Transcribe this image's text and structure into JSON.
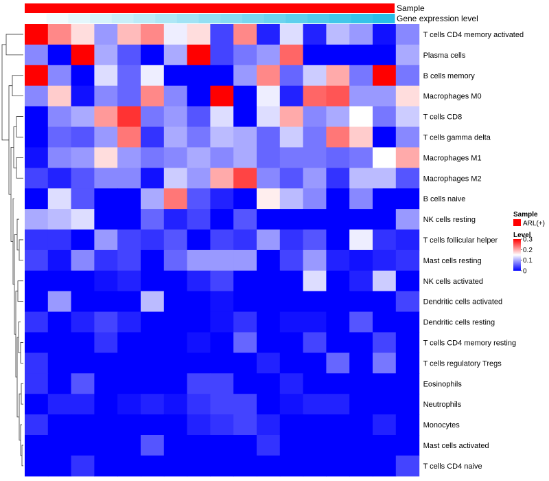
{
  "chart_data": {
    "type": "heatmap",
    "annotations": {
      "sample_label": "Sample",
      "gene_label": "Gene expression level",
      "sample_color": "#ff0000",
      "gene_colors": [
        "#ffffff",
        "#f2fbfe",
        "#e4f7fc",
        "#d7f3fb",
        "#c9eff9",
        "#bcebf8",
        "#aee7f6",
        "#a1e3f5",
        "#93dff3",
        "#86dbf2",
        "#78d7f0",
        "#6bd3ef",
        "#5dcfed",
        "#50cbec",
        "#42c7ea",
        "#35c3e9",
        "#27bfe7"
      ]
    },
    "rows": [
      "T cells CD4 memory activated",
      "Plasma cells",
      "B cells memory",
      "Macrophages M0",
      "T cells CD8",
      "T cells gamma delta",
      "Macrophages M1",
      "Macrophages M2",
      "B cells naive",
      "NK cells resting",
      "T cells follicular helper",
      "Mast cells resting",
      "NK cells activated",
      "Dendritic cells activated",
      "Dendritic cells resting",
      "T cells CD4 memory resting",
      "T cells regulatory  Tregs",
      "Eosinophils",
      "Neutrophils",
      "Monocytes",
      "Mast cells activated",
      "T cells CD4 naive"
    ],
    "values": [
      [
        0.3,
        0.22,
        0.17,
        0.09,
        0.19,
        0.22,
        0.14,
        0.17,
        0.04,
        0.22,
        0.02,
        0.13,
        0.02,
        0.11,
        0.09,
        0.01,
        0.08
      ],
      [
        0.08,
        0.0,
        0.3,
        0.1,
        0.05,
        0.0,
        0.1,
        0.3,
        0.04,
        0.07,
        0.09,
        0.24,
        0.0,
        0.0,
        0.0,
        0.0,
        0.1
      ],
      [
        0.3,
        0.08,
        0.0,
        0.13,
        0.06,
        0.14,
        0.0,
        0.0,
        0.0,
        0.09,
        0.22,
        0.06,
        0.12,
        0.2,
        0.07,
        0.3,
        0.07
      ],
      [
        0.08,
        0.18,
        0.01,
        0.08,
        0.06,
        0.22,
        0.08,
        0.0,
        0.3,
        0.0,
        0.14,
        0.02,
        0.24,
        0.25,
        0.09,
        0.09,
        0.17
      ],
      [
        0.0,
        0.08,
        0.1,
        0.21,
        0.27,
        0.07,
        0.09,
        0.05,
        0.13,
        0.0,
        0.13,
        0.2,
        0.08,
        0.1,
        0.15,
        0.07,
        0.12
      ],
      [
        0.0,
        0.06,
        0.05,
        0.09,
        0.23,
        0.03,
        0.1,
        0.07,
        0.11,
        0.1,
        0.06,
        0.12,
        0.07,
        0.23,
        0.18,
        0.0,
        0.08
      ],
      [
        0.01,
        0.08,
        0.09,
        0.17,
        0.09,
        0.07,
        0.08,
        0.1,
        0.08,
        0.1,
        0.06,
        0.07,
        0.07,
        0.06,
        0.07,
        0.15,
        0.2
      ],
      [
        0.04,
        0.02,
        0.05,
        0.08,
        0.08,
        0.01,
        0.12,
        0.09,
        0.2,
        0.26,
        0.08,
        0.05,
        0.09,
        0.03,
        0.11,
        0.11,
        0.05
      ],
      [
        0.0,
        0.13,
        0.05,
        0.0,
        0.0,
        0.1,
        0.23,
        0.05,
        0.02,
        0.0,
        0.16,
        0.11,
        0.08,
        0.0,
        0.08,
        0.0,
        0.0
      ],
      [
        0.1,
        0.11,
        0.13,
        0.0,
        0.0,
        0.06,
        0.02,
        0.04,
        0.0,
        0.05,
        0.0,
        0.0,
        0.0,
        0.0,
        0.0,
        0.0,
        0.09
      ],
      [
        0.03,
        0.03,
        0.0,
        0.09,
        0.04,
        0.03,
        0.05,
        0.0,
        0.04,
        0.03,
        0.09,
        0.03,
        0.05,
        0.0,
        0.14,
        0.03,
        0.02
      ],
      [
        0.04,
        0.01,
        0.08,
        0.03,
        0.04,
        0.0,
        0.06,
        0.09,
        0.09,
        0.09,
        0.0,
        0.04,
        0.09,
        0.02,
        0.01,
        0.02,
        0.03
      ],
      [
        0.0,
        0.0,
        0.0,
        0.01,
        0.02,
        0.0,
        0.0,
        0.02,
        0.04,
        0.0,
        0.0,
        0.0,
        0.13,
        0.0,
        0.02,
        0.12,
        0.0
      ],
      [
        0.0,
        0.09,
        0.0,
        0.0,
        0.0,
        0.11,
        0.0,
        0.0,
        0.01,
        0.0,
        0.0,
        0.0,
        0.0,
        0.0,
        0.0,
        0.0,
        0.04
      ],
      [
        0.03,
        0.0,
        0.02,
        0.04,
        0.02,
        0.0,
        0.0,
        0.0,
        0.01,
        0.03,
        0.0,
        0.01,
        0.01,
        0.0,
        0.05,
        0.0,
        0.0
      ],
      [
        0.0,
        0.0,
        0.0,
        0.03,
        0.0,
        0.0,
        0.0,
        0.01,
        0.0,
        0.06,
        0.0,
        0.0,
        0.04,
        0.0,
        0.0,
        0.04,
        0.0
      ],
      [
        0.03,
        0.0,
        0.0,
        0.0,
        0.0,
        0.0,
        0.0,
        0.0,
        0.0,
        0.0,
        0.02,
        0.0,
        0.0,
        0.06,
        0.0,
        0.07,
        0.0
      ],
      [
        0.03,
        0.0,
        0.05,
        0.0,
        0.0,
        0.0,
        0.0,
        0.04,
        0.04,
        0.0,
        0.0,
        0.02,
        0.0,
        0.0,
        0.0,
        0.0,
        0.0
      ],
      [
        0.0,
        0.02,
        0.02,
        0.0,
        0.01,
        0.02,
        0.01,
        0.03,
        0.04,
        0.04,
        0.0,
        0.01,
        0.02,
        0.02,
        0.0,
        0.0,
        0.0
      ],
      [
        0.03,
        0.0,
        0.0,
        0.0,
        0.0,
        0.0,
        0.0,
        0.02,
        0.03,
        0.04,
        0.02,
        0.0,
        0.0,
        0.0,
        0.0,
        0.02,
        0.0
      ],
      [
        0.0,
        0.0,
        0.0,
        0.0,
        0.0,
        0.05,
        0.0,
        0.0,
        0.0,
        0.0,
        0.03,
        0.0,
        0.0,
        0.0,
        0.0,
        0.0,
        0.0
      ],
      [
        0.0,
        0.0,
        0.03,
        0.0,
        0.0,
        0.0,
        0.0,
        0.0,
        0.0,
        0.0,
        0.0,
        0.0,
        0.0,
        0.0,
        0.0,
        0.0,
        0.04
      ]
    ],
    "color_scale": {
      "min": 0,
      "mid": 0.15,
      "max": 0.3,
      "low_color": "#0000ff",
      "mid_color": "#ffffff",
      "high_color": "#ff0000"
    },
    "legend": {
      "sample_title": "Sample",
      "sample_item": "ARL(+)",
      "level_title": "Level",
      "level_ticks": [
        {
          "value": 0.3,
          "label": "0.3"
        },
        {
          "value": 0.2,
          "label": "0.2"
        },
        {
          "value": 0.1,
          "label": "0.1"
        },
        {
          "value": 0,
          "label": "0"
        }
      ]
    }
  }
}
